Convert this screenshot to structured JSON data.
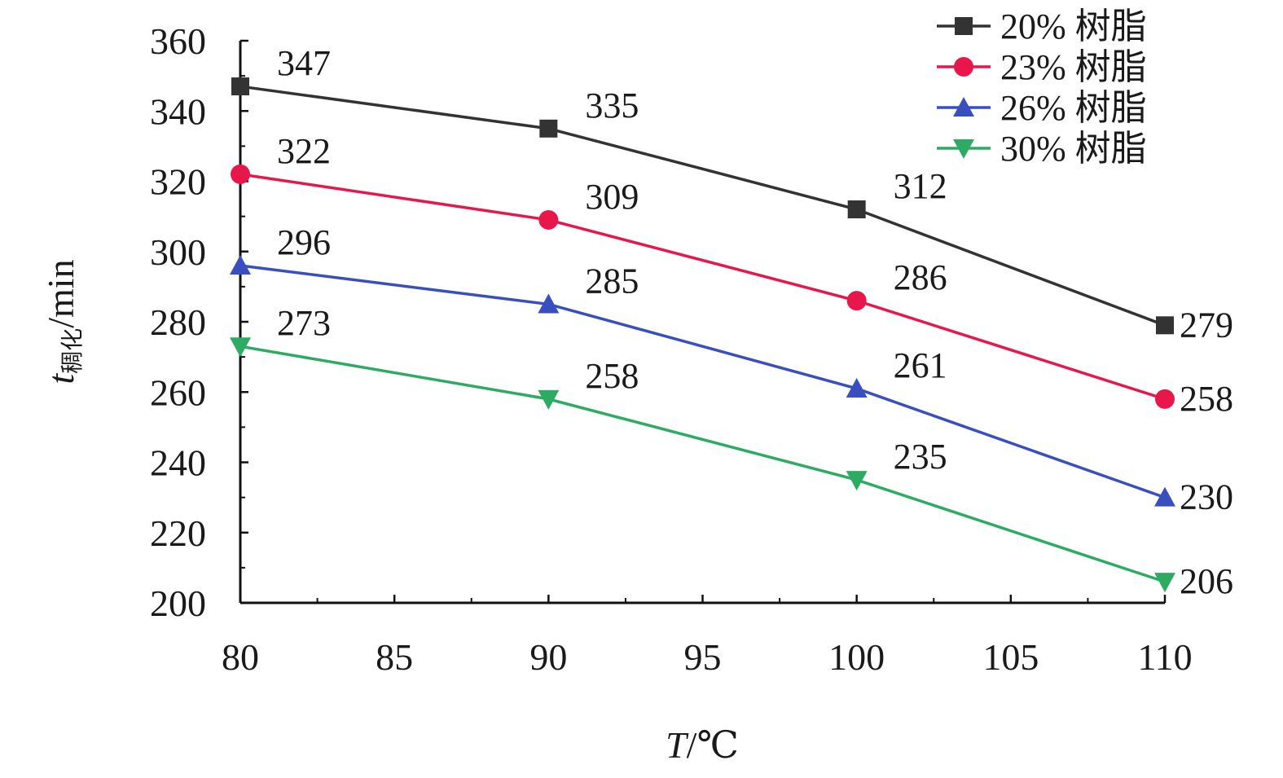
{
  "chart_data": {
    "type": "line",
    "x": [
      80,
      90,
      100,
      110
    ],
    "xlim": [
      80,
      110
    ],
    "ylim": [
      200,
      360
    ],
    "xticks": [
      "80",
      "85",
      "90",
      "95",
      "100",
      "105",
      "110"
    ],
    "yticks": [
      "200",
      "220",
      "240",
      "260",
      "280",
      "300",
      "320",
      "340",
      "360"
    ],
    "xlabel": {
      "var": "T",
      "unit": "/℃"
    },
    "ylabel": {
      "var": "t",
      "sub": "稠化",
      "unit": "/min"
    },
    "grid": false,
    "legend_position": "top-right",
    "series": [
      {
        "name": "20% 树脂",
        "marker": "square",
        "color": "#333333",
        "values": [
          347,
          335,
          312,
          279
        ],
        "labels": [
          "347",
          "335",
          "312",
          "279"
        ]
      },
      {
        "name": "23% 树脂",
        "marker": "circle",
        "color": "#e8174b",
        "values": [
          322,
          309,
          286,
          258
        ],
        "labels": [
          "322",
          "309",
          "286",
          "258"
        ]
      },
      {
        "name": "26% 树脂",
        "marker": "triangle-up",
        "color": "#3a4fbf",
        "values": [
          296,
          285,
          261,
          230
        ],
        "labels": [
          "296",
          "285",
          "261",
          "230"
        ]
      },
      {
        "name": "30% 树脂",
        "marker": "triangle-down",
        "color": "#2eab63",
        "values": [
          273,
          258,
          235,
          206
        ],
        "labels": [
          "273",
          "258",
          "235",
          "206"
        ]
      }
    ]
  }
}
